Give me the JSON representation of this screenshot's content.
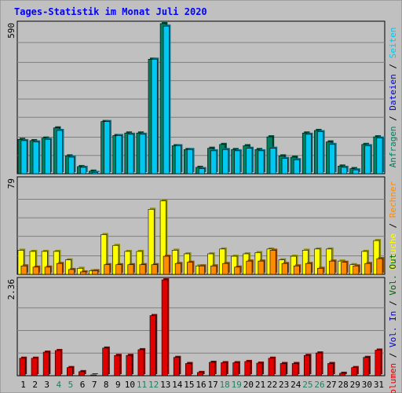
{
  "chart_data": {
    "type": "bar",
    "title": "Tages-Statistik im Monat Juli 2020",
    "categories": [
      "1",
      "2",
      "3",
      "4",
      "5",
      "6",
      "7",
      "8",
      "9",
      "10",
      "11",
      "12",
      "13",
      "14",
      "15",
      "16",
      "17",
      "18",
      "19",
      "20",
      "21",
      "22",
      "23",
      "24",
      "25",
      "26",
      "27",
      "28",
      "29",
      "30",
      "31"
    ],
    "weekend_days": [
      4,
      5,
      11,
      12,
      18,
      19,
      25,
      26
    ],
    "panels": [
      {
        "id": "top",
        "ymax_label": "590",
        "ymax": 590,
        "series": [
          {
            "name": "Anfragen",
            "color": "#008060",
            "values": [
              135,
              130,
              140,
              180,
              70,
              28,
              10,
              205,
              150,
              160,
              160,
              450,
              590,
              110,
              95,
              25,
              100,
              115,
              95,
              110,
              95,
              145,
              70,
              65,
              160,
              170,
              125,
              30,
              20,
              115,
              145
            ]
          },
          {
            "name": "Dateien",
            "color": "#00c8f0",
            "values": [
              130,
              125,
              135,
              170,
              65,
              25,
              5,
              205,
              150,
              155,
              155,
              450,
              580,
              110,
              95,
              20,
              90,
              95,
              90,
              100,
              90,
              100,
              60,
              55,
              155,
              165,
              115,
              25,
              15,
              110,
              140
            ]
          },
          {
            "name": "Seiten",
            "color": "#00c8f0",
            "values": []
          }
        ]
      },
      {
        "id": "middle",
        "ymax_label": "79",
        "ymax": 79,
        "series": [
          {
            "name": "Besuche",
            "color": "#ffff00",
            "values": [
              20,
              19,
              19,
              19,
              12,
              5,
              3,
              33,
              24,
              19,
              19,
              54,
              61,
              20,
              17,
              7,
              17,
              21,
              15,
              17,
              18,
              21,
              12,
              15,
              20,
              21,
              21,
              11,
              8,
              19,
              28
            ]
          },
          {
            "name": "Rechner",
            "color": "#ff8c00",
            "values": [
              7,
              6,
              6,
              9,
              4,
              2,
              3,
              8,
              8,
              8,
              8,
              8,
              15,
              9,
              10,
              7,
              7,
              9,
              6,
              11,
              11,
              20,
              9,
              7,
              9,
              5,
              11,
              10,
              7,
              9,
              13
            ]
          }
        ]
      },
      {
        "id": "bottom",
        "ymax_label": "2.36",
        "ymax": 2.36,
        "series": [
          {
            "name": "Volumen",
            "color": "#e00000",
            "values": [
              0.43,
              0.43,
              0.58,
              0.62,
              0.2,
              0.1,
              0.02,
              0.68,
              0.5,
              0.5,
              0.64,
              1.48,
              2.36,
              0.45,
              0.3,
              0.08,
              0.33,
              0.32,
              0.32,
              0.35,
              0.31,
              0.43,
              0.3,
              0.3,
              0.5,
              0.56,
              0.3,
              0.06,
              0.2,
              0.45,
              0.63
            ]
          },
          {
            "name": "Vol. In",
            "color": "#0000c0",
            "values": []
          },
          {
            "name": "Vol. Out",
            "color": "#006000",
            "values": []
          }
        ]
      }
    ],
    "right_labels": {
      "top": [
        {
          "text": "Anfragen",
          "color": "#008060"
        },
        {
          "text": " / ",
          "color": "#000000"
        },
        {
          "text": "Dateien",
          "color": "#0000c0"
        },
        {
          "text": " / ",
          "color": "#000000"
        },
        {
          "text": "Seiten",
          "color": "#00c8f0"
        }
      ],
      "middle": [
        {
          "text": "Besuche",
          "color": "#ffff00"
        },
        {
          "text": " / ",
          "color": "#000000"
        },
        {
          "text": "Rechner",
          "color": "#ff8c00"
        }
      ],
      "bottom": [
        {
          "text": "Volumen",
          "color": "#e00000"
        },
        {
          "text": " / ",
          "color": "#000000"
        },
        {
          "text": "Vol. In",
          "color": "#0000c0"
        },
        {
          "text": " / ",
          "color": "#000000"
        },
        {
          "text": "Vol. Out",
          "color": "#006000"
        }
      ]
    }
  }
}
